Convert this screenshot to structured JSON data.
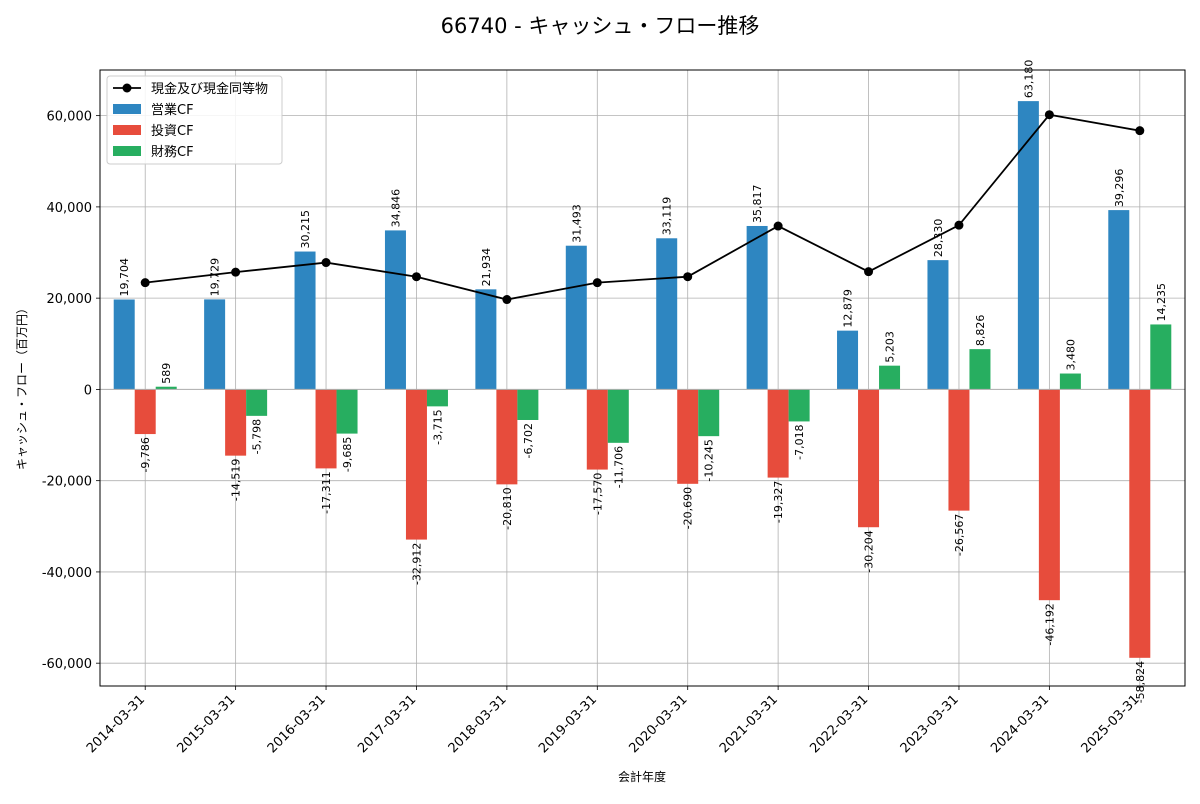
{
  "chart_data": {
    "type": "bar",
    "title": "66740 - キャッシュ・フロー推移",
    "xlabel": "会計年度",
    "ylabel": "キャッシュ・フロー（百万円）",
    "ylim": [
      -65000,
      70000
    ],
    "yticks": [
      -60000,
      -40000,
      -20000,
      0,
      20000,
      40000,
      60000
    ],
    "ytick_labels": [
      "-60,000",
      "-40,000",
      "-20,000",
      "0",
      "20,000",
      "40,000",
      "60,000"
    ],
    "grid": true,
    "legend_position": "top-left",
    "categories": [
      "2014-03-31",
      "2015-03-31",
      "2016-03-31",
      "2017-03-31",
      "2018-03-31",
      "2019-03-31",
      "2020-03-31",
      "2021-03-31",
      "2022-03-31",
      "2023-03-31",
      "2024-03-31",
      "2025-03-31"
    ],
    "series": [
      {
        "name": "営業CF",
        "kind": "bar",
        "color": "#2e86c1",
        "values": [
          19704,
          19729,
          30215,
          34846,
          21934,
          31493,
          33119,
          35817,
          12879,
          28330,
          63180,
          39296
        ],
        "labels": [
          "19,704",
          "19,729",
          "30,215",
          "34,846",
          "21,934",
          "31,493",
          "33,119",
          "35,817",
          "12,879",
          "28,330",
          "63,180",
          "39,296"
        ]
      },
      {
        "name": "投資CF",
        "kind": "bar",
        "color": "#e74c3c",
        "values": [
          -9786,
          -14519,
          -17311,
          -32912,
          -20810,
          -17570,
          -20690,
          -19327,
          -30204,
          -26567,
          -46192,
          -58824
        ],
        "labels": [
          "-9,786",
          "-14,519",
          "-17,311",
          "-32,912",
          "-20,810",
          "-17,570",
          "-20,690",
          "-19,327",
          "-30,204",
          "-26,567",
          "-46,192",
          "-58,824"
        ]
      },
      {
        "name": "財務CF",
        "kind": "bar",
        "color": "#27ae60",
        "values": [
          589,
          -5798,
          -9685,
          -3715,
          -6702,
          -11706,
          -10245,
          -7018,
          5203,
          8826,
          3480,
          14235
        ],
        "labels": [
          "589",
          "-5,798",
          "-9,685",
          "-3,715",
          "-6,702",
          "-11,706",
          "-10,245",
          "-7,018",
          "5,203",
          "8,826",
          "3,480",
          "14,235"
        ]
      },
      {
        "name": "現金及び現金同等物",
        "kind": "line",
        "color": "#000000",
        "values": [
          23400,
          25700,
          27800,
          24700,
          19700,
          23400,
          24700,
          35800,
          25800,
          36000,
          60200,
          56700
        ]
      }
    ]
  }
}
